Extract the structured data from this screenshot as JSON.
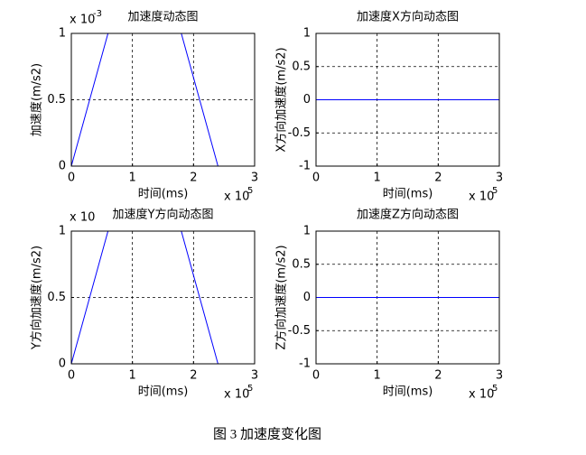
{
  "chart_data": [
    {
      "type": "line",
      "title": "加速度动态图",
      "xlabel": "时间(ms)",
      "ylabel": "加速度(m/s2)",
      "x": [
        0,
        0.6,
        1.8,
        2.4
      ],
      "values": [
        0,
        1,
        1,
        0
      ],
      "color": "#0000ff",
      "xlim": [
        0,
        3
      ],
      "xticks": [
        0,
        1,
        2,
        3
      ],
      "ylim": [
        0,
        1
      ],
      "yticks": [
        0,
        0.5,
        1
      ],
      "grid": true,
      "x_multiplier": "x 10",
      "x_multiplier_exp": "5",
      "y_multiplier": "x 10",
      "y_multiplier_exp": "-3"
    },
    {
      "type": "line",
      "title": "加速度X方向动态图",
      "xlabel": "时间(ms)",
      "ylabel": "X方向加速度(m/s2)",
      "x": [
        0,
        3
      ],
      "values": [
        0,
        0
      ],
      "color": "#0000ff",
      "xlim": [
        0,
        3
      ],
      "xticks": [
        0,
        1,
        2,
        3
      ],
      "ylim": [
        -1,
        1
      ],
      "yticks": [
        -1,
        -0.5,
        0,
        0.5,
        1
      ],
      "grid": true,
      "x_multiplier": "x 10",
      "x_multiplier_exp": "5"
    },
    {
      "type": "line",
      "title": "加速度Y方向动态图",
      "xlabel": "时间(ms)",
      "ylabel": "Y方向加速度(m/s2)",
      "x": [
        0,
        0.6,
        1.8,
        2.4
      ],
      "values": [
        0,
        1,
        1,
        0
      ],
      "color": "#0000ff",
      "xlim": [
        0,
        3
      ],
      "xticks": [
        0,
        1,
        2,
        3
      ],
      "ylim": [
        0,
        1
      ],
      "yticks": [
        0,
        0.5,
        1
      ],
      "grid": true,
      "x_multiplier": "x 10",
      "x_multiplier_exp": "5",
      "y_multiplier": "x 10"
    },
    {
      "type": "line",
      "title": "加速度Z方向动态图",
      "xlabel": "时间(ms)",
      "ylabel": "Z方向加速度(m/s2)",
      "x": [
        0,
        3
      ],
      "values": [
        0,
        0
      ],
      "color": "#0000ff",
      "xlim": [
        0,
        3
      ],
      "xticks": [
        0,
        1,
        2,
        3
      ],
      "ylim": [
        -1,
        1
      ],
      "yticks": [
        -1,
        -0.5,
        0,
        0.5,
        1
      ],
      "grid": true,
      "x_multiplier": "x 10",
      "x_multiplier_exp": "5"
    }
  ],
  "caption": "图 3  加速度变化图"
}
